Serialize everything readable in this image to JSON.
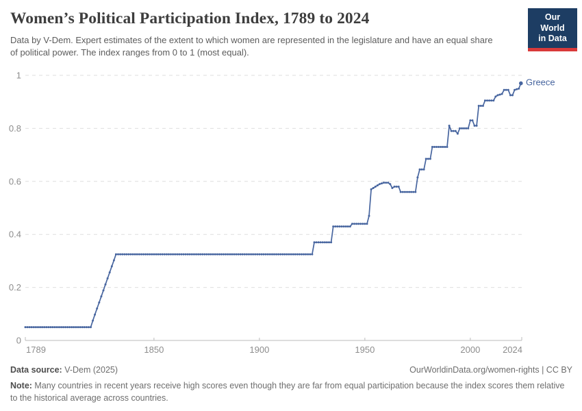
{
  "header": {
    "title": "Women’s Political Participation Index, 1789 to 2024",
    "subtitle": "Data by V-Dem. Expert estimates of the extent to which women are represented in the legislature and have an equal share of political power. The index ranges from 0 to 1 (most equal).",
    "logo_line1": "Our World",
    "logo_line2": "in Data",
    "logo_bg_color": "#1d3d63",
    "logo_accent_color": "#d93a3a"
  },
  "chart_data": {
    "type": "line",
    "title": "Women's Political Participation Index, 1789 to 2024",
    "xlabel": "",
    "ylabel": "",
    "xlim": [
      1789,
      2024
    ],
    "ylim": [
      0,
      1
    ],
    "grid": "horizontal-dashed",
    "legend": "line-end-label",
    "point_markers": true,
    "yticks": [
      {
        "value": 0,
        "label": "0"
      },
      {
        "value": 0.2,
        "label": "0.2"
      },
      {
        "value": 0.4,
        "label": "0.4"
      },
      {
        "value": 0.6,
        "label": "0.6"
      },
      {
        "value": 0.8,
        "label": "0.8"
      },
      {
        "value": 1,
        "label": "1"
      }
    ],
    "xticks": [
      {
        "year": 1789,
        "label": "1789",
        "align": "start",
        "tick": false
      },
      {
        "year": 1850,
        "label": "1850",
        "align": "middle",
        "tick": true
      },
      {
        "year": 1900,
        "label": "1900",
        "align": "middle",
        "tick": true
      },
      {
        "year": 1950,
        "label": "1950",
        "align": "middle",
        "tick": true
      },
      {
        "year": 2000,
        "label": "2000",
        "align": "middle",
        "tick": true
      },
      {
        "year": 2024,
        "label": "2024",
        "align": "end",
        "tick": false
      }
    ],
    "series": [
      {
        "name": "Greece",
        "color": "#47659f",
        "interpolation": "annual points, linear between breakpoints",
        "points": [
          [
            1789,
            0.05
          ],
          [
            1820,
            0.05
          ],
          [
            1821,
            0.075
          ],
          [
            1832,
            0.325
          ],
          [
            1925,
            0.325
          ],
          [
            1926,
            0.37
          ],
          [
            1934,
            0.37
          ],
          [
            1935,
            0.43
          ],
          [
            1943,
            0.43
          ],
          [
            1944,
            0.44
          ],
          [
            1951,
            0.44
          ],
          [
            1952,
            0.47
          ],
          [
            1953,
            0.57
          ],
          [
            1955,
            0.58
          ],
          [
            1957,
            0.59
          ],
          [
            1959,
            0.595
          ],
          [
            1961,
            0.595
          ],
          [
            1962,
            0.59
          ],
          [
            1963,
            0.575
          ],
          [
            1964,
            0.58
          ],
          [
            1966,
            0.58
          ],
          [
            1967,
            0.56
          ],
          [
            1974,
            0.56
          ],
          [
            1975,
            0.615
          ],
          [
            1976,
            0.645
          ],
          [
            1978,
            0.645
          ],
          [
            1979,
            0.685
          ],
          [
            1981,
            0.685
          ],
          [
            1982,
            0.73
          ],
          [
            1989,
            0.73
          ],
          [
            1990,
            0.81
          ],
          [
            1991,
            0.79
          ],
          [
            1993,
            0.79
          ],
          [
            1994,
            0.78
          ],
          [
            1995,
            0.8
          ],
          [
            1999,
            0.8
          ],
          [
            2000,
            0.83
          ],
          [
            2001,
            0.83
          ],
          [
            2002,
            0.81
          ],
          [
            2003,
            0.81
          ],
          [
            2004,
            0.885
          ],
          [
            2006,
            0.885
          ],
          [
            2007,
            0.905
          ],
          [
            2011,
            0.905
          ],
          [
            2012,
            0.92
          ],
          [
            2013,
            0.925
          ],
          [
            2015,
            0.93
          ],
          [
            2016,
            0.945
          ],
          [
            2018,
            0.945
          ],
          [
            2019,
            0.925
          ],
          [
            2020,
            0.925
          ],
          [
            2021,
            0.945
          ],
          [
            2023,
            0.95
          ],
          [
            2024,
            0.97
          ]
        ]
      }
    ]
  },
  "footer": {
    "data_source_label": "Data source:",
    "data_source_value": " V-Dem (2025)",
    "attribution": "OurWorldinData.org/women-rights | CC BY",
    "note_label": "Note:",
    "note_text": " Many countries in recent years receive high scores even though they are far from equal participation because the index scores them relative to the historical average across countries."
  }
}
